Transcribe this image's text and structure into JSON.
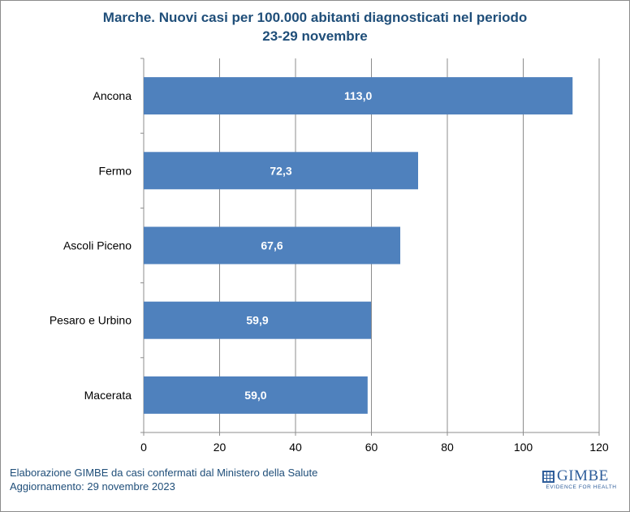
{
  "chart_data": {
    "type": "bar",
    "orientation": "horizontal",
    "title": "Marche. Nuovi casi per 100.000 abitanti diagnosticati nel periodo",
    "subtitle": "23-29 novembre",
    "categories": [
      "Ancona",
      "Fermo",
      "Ascoli Piceno",
      "Pesaro e Urbino",
      "Macerata"
    ],
    "values": [
      113.0,
      72.3,
      67.6,
      59.9,
      59.0
    ],
    "value_labels": [
      "113,0",
      "72,3",
      "67,6",
      "59,9",
      "59,0"
    ],
    "xlim": [
      0,
      120
    ],
    "xticks": [
      0,
      20,
      40,
      60,
      80,
      100,
      120
    ],
    "grid": true,
    "legend": "none",
    "bar_color": "#4f81bd",
    "grid_color": "#8c8c8c",
    "title_color": "#1f4e79",
    "label_color": "#ffffff"
  },
  "footer": {
    "source_line1": "Elaborazione GIMBE da casi confermati dal Ministero della Salute",
    "source_line2": "Aggiornamento: 29 novembre 2023"
  },
  "logo": {
    "name": "GIMBE",
    "tagline": "EVIDENCE FOR HEALTH",
    "icon": "gimbe-grid-icon"
  }
}
